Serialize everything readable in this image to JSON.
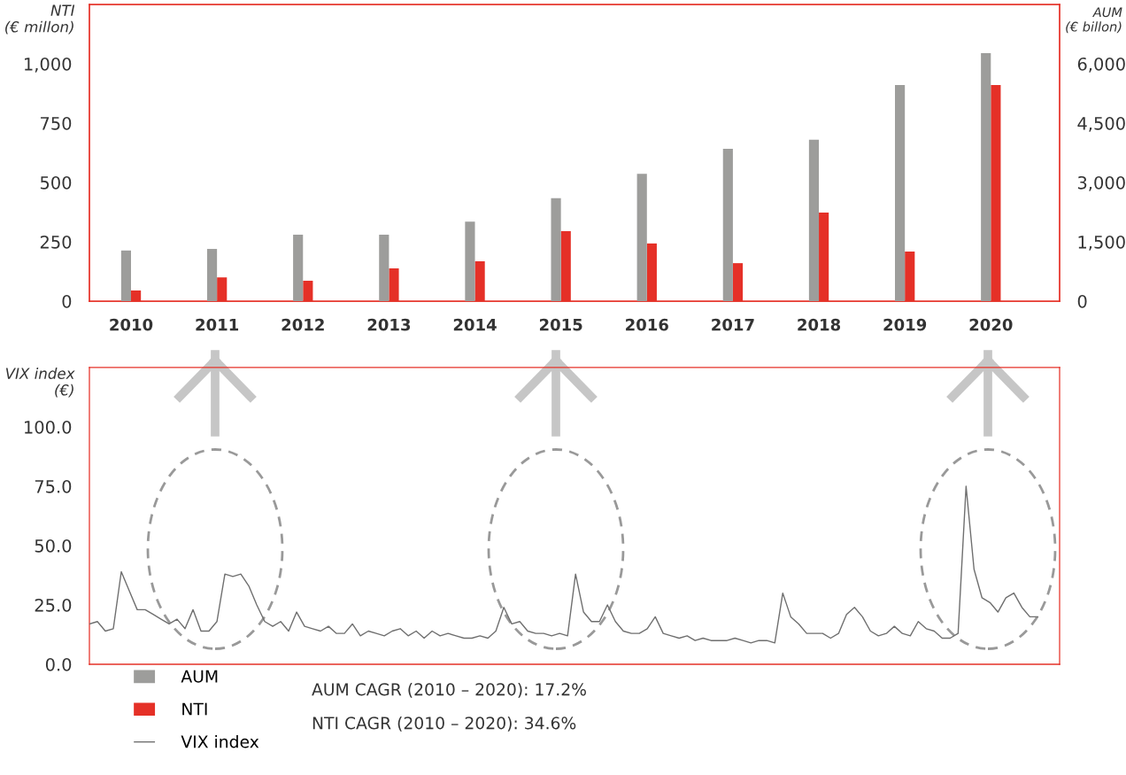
{
  "chart_data": [
    {
      "type": "bar",
      "categories": [
        "2010",
        "2011",
        "2012",
        "2013",
        "2014",
        "2015",
        "2016",
        "2017",
        "2018",
        "2019",
        "2020"
      ],
      "series": [
        {
          "name": "AUM",
          "color": "#9d9d9b",
          "axis": "y2",
          "values": [
            1280,
            1320,
            1680,
            1680,
            2010,
            2600,
            3220,
            3850,
            4080,
            5460,
            6270
          ]
        },
        {
          "name": "NTI",
          "color": "#e53027",
          "axis": "y",
          "values": [
            45,
            100,
            86,
            138,
            168,
            295,
            243,
            160,
            373,
            209,
            910
          ]
        }
      ],
      "ylabel": "NTI\n(€ millon)",
      "y2label": "AUM\n(€ billon)",
      "ylim": [
        0,
        1250
      ],
      "yticks": [
        0,
        250,
        500,
        750,
        {
          "value": 1000,
          "label": "1,000"
        }
      ],
      "y2lim": [
        0,
        7500
      ],
      "y2ticks": [
        0,
        {
          "value": 1500,
          "label": "1,500"
        },
        {
          "value": 3000,
          "label": "3,000"
        },
        {
          "value": 4500,
          "label": "4,500"
        },
        {
          "value": 6000,
          "label": "6,000"
        }
      ],
      "grid": false,
      "legend": "bottom"
    },
    {
      "type": "line",
      "categories": [
        null,
        null,
        null,
        null,
        null,
        null,
        null,
        null,
        null,
        null,
        null,
        null,
        null,
        null,
        null,
        null,
        null,
        null,
        null,
        null,
        null,
        null,
        null,
        null,
        null,
        null,
        null,
        null,
        null,
        null,
        null,
        null,
        null,
        null,
        null,
        null,
        null,
        null,
        null,
        null,
        null,
        null,
        null,
        null,
        null,
        null,
        null,
        null,
        null,
        null,
        null,
        null,
        null,
        null,
        null,
        null,
        null,
        null,
        null,
        null,
        null,
        null,
        null,
        null,
        null,
        null,
        null,
        null,
        null,
        null,
        null,
        null,
        null,
        null,
        null,
        null,
        null,
        null,
        null,
        null,
        null,
        null,
        null,
        null,
        null,
        null,
        null,
        null,
        null,
        null,
        null,
        null,
        null,
        null,
        null,
        null,
        null,
        null,
        null,
        null,
        null,
        null,
        null,
        null,
        null,
        null,
        null,
        null,
        null,
        null,
        null,
        null,
        null,
        null,
        null,
        null,
        null,
        null,
        null,
        null
      ],
      "series": [
        {
          "name": "VIX index",
          "color": "#6f6f6f",
          "values": [
            17,
            18,
            14,
            15,
            39,
            31,
            23,
            23,
            21,
            19,
            17,
            19,
            15,
            23,
            14,
            14,
            18,
            38,
            37,
            38,
            33,
            25,
            18,
            16,
            18,
            14,
            22,
            16,
            15,
            14,
            16,
            13,
            13,
            17,
            12,
            14,
            13,
            12,
            14,
            15,
            12,
            14,
            11,
            14,
            12,
            13,
            12,
            11,
            11,
            12,
            11,
            14,
            24,
            17,
            18,
            14,
            13,
            13,
            12,
            13,
            12,
            38,
            22,
            18,
            18,
            25,
            18,
            14,
            13,
            13,
            15,
            20,
            13,
            12,
            11,
            12,
            10,
            11,
            10,
            10,
            10,
            11,
            10,
            9,
            10,
            10,
            9,
            30,
            20,
            17,
            13,
            13,
            13,
            11,
            13,
            21,
            24,
            20,
            14,
            12,
            13,
            16,
            13,
            12,
            18,
            15,
            14,
            11,
            11,
            13,
            75,
            40,
            28,
            26,
            22,
            28,
            30,
            24,
            20,
            20
          ]
        }
      ],
      "ylabel": "VIX index\n(€)",
      "ylim": [
        0,
        125
      ],
      "yticks": [
        {
          "value": 0,
          "label": "0.0"
        },
        {
          "value": 25,
          "label": "25.0"
        },
        {
          "value": 50,
          "label": "50.0"
        },
        {
          "value": 75,
          "label": "75.0"
        },
        {
          "value": 100,
          "label": "100.0"
        }
      ],
      "tick_labels": "y",
      "grid": false,
      "legend": "bottom",
      "marker": "none",
      "line_style": "solid",
      "annotations": [
        "AUM CAGR (2010 – 2020): 17.2%",
        "NTI CAGR (2010 – 2020): 34.6%"
      ]
    }
  ]
}
